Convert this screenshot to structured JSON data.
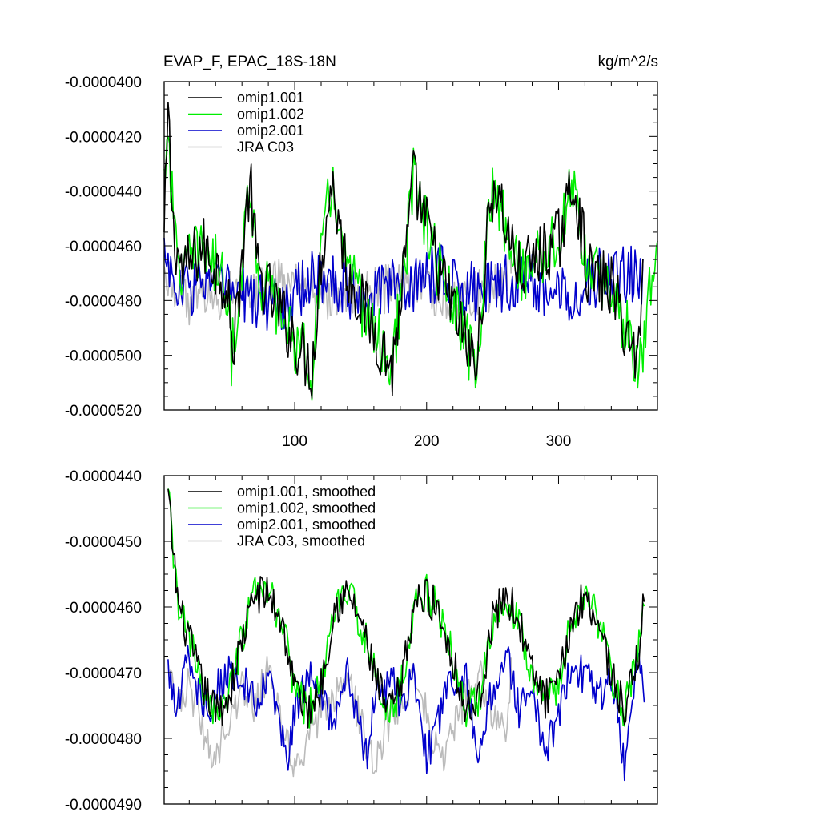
{
  "chart_data": [
    {
      "type": "line",
      "title_left": "EVAP_F, EPAC_18S-18N",
      "title_right": "kg/m^2/s",
      "xlabel": "",
      "ylabel": "",
      "xlim": [
        1,
        375
      ],
      "ylim": [
        -5.2e-05,
        -4e-05
      ],
      "xticks": [
        100,
        200,
        300
      ],
      "xtick_labels": [
        "100",
        "200",
        "300"
      ],
      "yticks": [
        -4e-05,
        -4.2e-05,
        -4.4e-05,
        -4.6e-05,
        -4.8e-05,
        -5e-05,
        -5.2e-05
      ],
      "ytick_labels": [
        "-0.0000400",
        "-0.0000420",
        "-0.0000440",
        "-0.0000460",
        "-0.0000480",
        "-0.0000500",
        "-0.0000520"
      ],
      "legend_position": "top-left",
      "series": [
        {
          "name": "omip1.001",
          "color": "#000000",
          "x_range": [
            1,
            364
          ],
          "anchor_x": [
            1,
            4,
            8,
            15,
            30,
            50,
            52,
            66,
            72,
            113,
            120,
            128,
            140,
            174,
            185,
            190,
            210,
            238,
            245,
            251,
            270,
            300,
            312,
            322,
            340,
            360,
            364
          ],
          "anchor_y": [
            -4.58e-05,
            -4.12e-05,
            -4.55e-05,
            -4.7e-05,
            -4.6e-05,
            -4.75e-05,
            -5.03e-05,
            -4.36e-05,
            -4.7e-05,
            -5.05e-05,
            -4.65e-05,
            -4.36e-05,
            -4.7e-05,
            -5.05e-05,
            -4.6e-05,
            -4.36e-05,
            -4.7e-05,
            -5.05e-05,
            -4.62e-05,
            -4.36e-05,
            -4.7e-05,
            -4.58e-05,
            -4.36e-05,
            -4.7e-05,
            -4.75e-05,
            -5.03e-05,
            -4.6e-05
          ],
          "noise": 1.2e-06
        },
        {
          "name": "omip1.002",
          "color": "#00ee00",
          "x_range": [
            1,
            375
          ],
          "anchor_x": [
            1,
            4,
            8,
            15,
            30,
            50,
            52,
            66,
            72,
            113,
            120,
            128,
            140,
            174,
            185,
            190,
            210,
            238,
            245,
            251,
            270,
            300,
            312,
            322,
            340,
            362,
            375
          ],
          "anchor_y": [
            -4.35e-05,
            -4.12e-05,
            -4.55e-05,
            -4.7e-05,
            -4.6e-05,
            -4.75e-05,
            -5.03e-05,
            -4.36e-05,
            -4.7e-05,
            -5.05e-05,
            -4.65e-05,
            -4.36e-05,
            -4.7e-05,
            -5.05e-05,
            -4.6e-05,
            -4.36e-05,
            -4.7e-05,
            -5.05e-05,
            -4.62e-05,
            -4.36e-05,
            -4.7e-05,
            -4.58e-05,
            -4.36e-05,
            -4.7e-05,
            -4.75e-05,
            -5.04e-05,
            -4.5e-05
          ],
          "noise": 1.2e-06
        },
        {
          "name": "omip2.001",
          "color": "#0000cc",
          "x_range": [
            1,
            364
          ],
          "anchor_x": [
            1,
            10,
            30,
            60,
            90,
            120,
            150,
            180,
            210,
            240,
            270,
            300,
            330,
            350,
            364
          ],
          "anchor_y": [
            -4.6e-05,
            -4.78e-05,
            -4.72e-05,
            -4.78e-05,
            -4.82e-05,
            -4.7e-05,
            -4.78e-05,
            -4.75e-05,
            -4.7e-05,
            -4.78e-05,
            -4.72e-05,
            -4.78e-05,
            -4.72e-05,
            -4.7e-05,
            -4.72e-05
          ],
          "noise": 1.1e-06
        },
        {
          "name": "JRA C03",
          "color": "#bbbbbb",
          "x_range": [
            1,
            265
          ],
          "anchor_x": [
            1,
            20,
            40,
            70,
            100,
            130,
            160,
            190,
            220,
            250,
            265
          ],
          "anchor_y": [
            -4.7e-05,
            -4.8e-05,
            -4.78e-05,
            -4.77e-05,
            -4.72e-05,
            -4.8e-05,
            -4.76e-05,
            -4.75e-05,
            -4.8e-05,
            -4.75e-05,
            -4.66e-05
          ],
          "noise": 9e-07
        }
      ]
    },
    {
      "type": "line",
      "title_left": "",
      "title_right": "",
      "xlabel": "",
      "ylabel": "",
      "xlim": [
        1,
        375
      ],
      "ylim": [
        -4.9e-05,
        -4.4e-05
      ],
      "xticks": [
        100,
        200,
        300
      ],
      "xtick_labels": [],
      "yticks": [
        -4.4e-05,
        -4.5e-05,
        -4.6e-05,
        -4.7e-05,
        -4.8e-05,
        -4.9e-05
      ],
      "ytick_labels": [
        "-0.0000440",
        "-0.0000450",
        "-0.0000460",
        "-0.0000470",
        "-0.0000480",
        "-0.0000490"
      ],
      "legend_position": "top-left",
      "series": [
        {
          "name": "omip1.001, smoothed",
          "color": "#000000",
          "x_range": [
            4,
            365
          ],
          "anchor_x": [
            4,
            8,
            12,
            20,
            30,
            40,
            50,
            60,
            70,
            80,
            90,
            100,
            110,
            120,
            130,
            140,
            150,
            160,
            170,
            180,
            190,
            200,
            210,
            220,
            230,
            240,
            250,
            260,
            270,
            280,
            290,
            300,
            310,
            320,
            330,
            340,
            350,
            360,
            365
          ],
          "anchor_y": [
            -4.43e-05,
            -4.52e-05,
            -4.6e-05,
            -4.65e-05,
            -4.72e-05,
            -4.76e-05,
            -4.74e-05,
            -4.65e-05,
            -4.58e-05,
            -4.58e-05,
            -4.62e-05,
            -4.72e-05,
            -4.76e-05,
            -4.72e-05,
            -4.6e-05,
            -4.58e-05,
            -4.62e-05,
            -4.7e-05,
            -4.76e-05,
            -4.73e-05,
            -4.6e-05,
            -4.58e-05,
            -4.61e-05,
            -4.68e-05,
            -4.76e-05,
            -4.74e-05,
            -4.62e-05,
            -4.58e-05,
            -4.62e-05,
            -4.7e-05,
            -4.74e-05,
            -4.72e-05,
            -4.62e-05,
            -4.58e-05,
            -4.62e-05,
            -4.7e-05,
            -4.76e-05,
            -4.68e-05,
            -4.58e-05
          ],
          "noise": 3e-07
        },
        {
          "name": "omip1.002, smoothed",
          "color": "#00ee00",
          "x_range": [
            4,
            365
          ],
          "anchor_x": [
            4,
            8,
            12,
            20,
            30,
            40,
            50,
            60,
            70,
            80,
            90,
            100,
            110,
            120,
            130,
            140,
            150,
            160,
            170,
            180,
            190,
            200,
            210,
            220,
            230,
            240,
            250,
            260,
            270,
            280,
            290,
            300,
            310,
            320,
            330,
            340,
            350,
            360,
            365
          ],
          "anchor_y": [
            -4.43e-05,
            -4.52e-05,
            -4.6e-05,
            -4.65e-05,
            -4.72e-05,
            -4.76e-05,
            -4.74e-05,
            -4.65e-05,
            -4.58e-05,
            -4.58e-05,
            -4.62e-05,
            -4.72e-05,
            -4.76e-05,
            -4.72e-05,
            -4.6e-05,
            -4.58e-05,
            -4.62e-05,
            -4.7e-05,
            -4.76e-05,
            -4.73e-05,
            -4.6e-05,
            -4.58e-05,
            -4.61e-05,
            -4.68e-05,
            -4.76e-05,
            -4.74e-05,
            -4.62e-05,
            -4.58e-05,
            -4.62e-05,
            -4.7e-05,
            -4.74e-05,
            -4.72e-05,
            -4.62e-05,
            -4.58e-05,
            -4.62e-05,
            -4.7e-05,
            -4.76e-05,
            -4.68e-05,
            -4.58e-05
          ],
          "noise": 3e-07
        },
        {
          "name": "omip2.001, smoothed",
          "color": "#0000cc",
          "x_range": [
            4,
            365
          ],
          "anchor_x": [
            4,
            10,
            18,
            25,
            38,
            42,
            50,
            60,
            72,
            80,
            95,
            100,
            110,
            120,
            130,
            140,
            155,
            160,
            175,
            180,
            190,
            200,
            212,
            220,
            230,
            240,
            250,
            262,
            270,
            280,
            290,
            300,
            310,
            320,
            335,
            340,
            350,
            360,
            365
          ],
          "anchor_y": [
            -4.69e-05,
            -4.76e-05,
            -4.68e-05,
            -4.72e-05,
            -4.76e-05,
            -4.72e-05,
            -4.7e-05,
            -4.71e-05,
            -4.76e-05,
            -4.7e-05,
            -4.84e-05,
            -4.76e-05,
            -4.7e-05,
            -4.74e-05,
            -4.78e-05,
            -4.7e-05,
            -4.84e-05,
            -4.74e-05,
            -4.71e-05,
            -4.76e-05,
            -4.7e-05,
            -4.83e-05,
            -4.75e-05,
            -4.71e-05,
            -4.7e-05,
            -4.84e-05,
            -4.72e-05,
            -4.68e-05,
            -4.76e-05,
            -4.72e-05,
            -4.83e-05,
            -4.76e-05,
            -4.68e-05,
            -4.71e-05,
            -4.74e-05,
            -4.7e-05,
            -4.84e-05,
            -4.68e-05,
            -4.72e-05
          ],
          "noise": 3e-07
        },
        {
          "name": "JRA C03, smoothed",
          "color": "#bbbbbb",
          "x_range": [
            4,
            265
          ],
          "anchor_x": [
            4,
            12,
            20,
            30,
            40,
            45,
            55,
            60,
            70,
            80,
            90,
            100,
            110,
            120,
            130,
            140,
            150,
            160,
            170,
            180,
            190,
            200,
            210,
            220,
            230,
            240,
            250,
            260,
            265
          ],
          "anchor_y": [
            -4.69e-05,
            -4.75e-05,
            -4.72e-05,
            -4.78e-05,
            -4.85e-05,
            -4.78e-05,
            -4.76e-05,
            -4.72e-05,
            -4.75e-05,
            -4.7e-05,
            -4.78e-05,
            -4.85e-05,
            -4.8e-05,
            -4.76e-05,
            -4.74e-05,
            -4.7e-05,
            -4.78e-05,
            -4.84e-05,
            -4.78e-05,
            -4.74e-05,
            -4.71e-05,
            -4.76e-05,
            -4.84e-05,
            -4.78e-05,
            -4.74e-05,
            -4.7e-05,
            -4.76e-05,
            -4.8e-05,
            -4.68e-05
          ],
          "noise": 3e-07
        }
      ]
    }
  ]
}
